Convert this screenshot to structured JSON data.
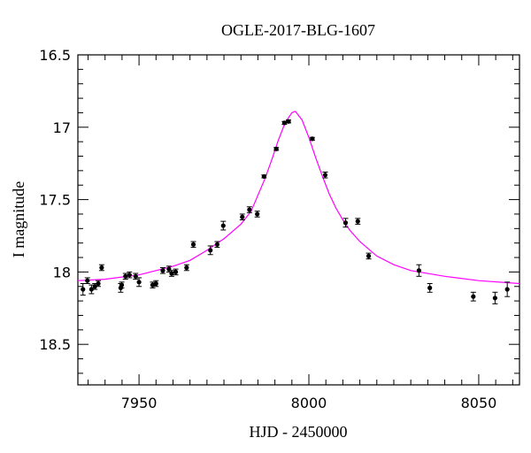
{
  "chart_data": {
    "type": "scatter",
    "title": "OGLE-2017-BLG-1607",
    "xlabel": "HJD - 2450000",
    "ylabel": "I magnitude",
    "xlim": [
      7932,
      8062
    ],
    "ylim": [
      18.78,
      16.5
    ],
    "y_inverted": true,
    "xticks": [
      7950,
      8000,
      8050
    ],
    "xtick_labels": [
      "7950",
      "8000",
      "8050"
    ],
    "yticks": [
      16.5,
      17,
      17.5,
      18,
      18.5
    ],
    "ytick_labels": [
      "16.5",
      "17",
      "17.5",
      "18",
      "18.5"
    ],
    "grid": false,
    "series": [
      {
        "kind": "points",
        "color": "#000000",
        "points": [
          {
            "x": 7933.5,
            "y": 18.12,
            "err": 0.04
          },
          {
            "x": 7934.8,
            "y": 18.06,
            "err": 0.02
          },
          {
            "x": 7936.0,
            "y": 18.12,
            "err": 0.03
          },
          {
            "x": 7937.0,
            "y": 18.1,
            "err": 0.02
          },
          {
            "x": 7938.0,
            "y": 18.08,
            "err": 0.02
          },
          {
            "x": 7939.0,
            "y": 17.97,
            "err": 0.02
          },
          {
            "x": 7944.6,
            "y": 18.11,
            "err": 0.03
          },
          {
            "x": 7944.9,
            "y": 18.09,
            "err": 0.02
          },
          {
            "x": 7946.0,
            "y": 18.03,
            "err": 0.02
          },
          {
            "x": 7947.2,
            "y": 18.02,
            "err": 0.02
          },
          {
            "x": 7949.0,
            "y": 18.03,
            "err": 0.02
          },
          {
            "x": 7950.0,
            "y": 18.07,
            "err": 0.03
          },
          {
            "x": 7954.0,
            "y": 18.09,
            "err": 0.02
          },
          {
            "x": 7955.0,
            "y": 18.08,
            "err": 0.02
          },
          {
            "x": 7957.0,
            "y": 17.99,
            "err": 0.02
          },
          {
            "x": 7958.8,
            "y": 17.98,
            "err": 0.02
          },
          {
            "x": 7959.6,
            "y": 18.01,
            "err": 0.02
          },
          {
            "x": 7960.8,
            "y": 18.0,
            "err": 0.02
          },
          {
            "x": 7964.0,
            "y": 17.97,
            "err": 0.02
          },
          {
            "x": 7966.0,
            "y": 17.81,
            "err": 0.02
          },
          {
            "x": 7971.0,
            "y": 17.85,
            "err": 0.03
          },
          {
            "x": 7973.0,
            "y": 17.81,
            "err": 0.02
          },
          {
            "x": 7974.8,
            "y": 17.68,
            "err": 0.03
          },
          {
            "x": 7980.4,
            "y": 17.62,
            "err": 0.02
          },
          {
            "x": 7982.5,
            "y": 17.57,
            "err": 0.02
          },
          {
            "x": 7984.8,
            "y": 17.6,
            "err": 0.02
          },
          {
            "x": 7986.8,
            "y": 17.34,
            "err": 0.01
          },
          {
            "x": 7990.4,
            "y": 17.15,
            "err": 0.01
          },
          {
            "x": 7992.8,
            "y": 16.97,
            "err": 0.01
          },
          {
            "x": 7994.0,
            "y": 16.96,
            "err": 0.01
          },
          {
            "x": 8001.0,
            "y": 17.08,
            "err": 0.01
          },
          {
            "x": 8004.8,
            "y": 17.33,
            "err": 0.02
          },
          {
            "x": 8010.8,
            "y": 17.66,
            "err": 0.03
          },
          {
            "x": 8014.4,
            "y": 17.65,
            "err": 0.02
          },
          {
            "x": 8017.6,
            "y": 17.89,
            "err": 0.02
          },
          {
            "x": 8032.4,
            "y": 17.99,
            "err": 0.04
          },
          {
            "x": 8035.6,
            "y": 18.11,
            "err": 0.03
          },
          {
            "x": 8048.4,
            "y": 18.17,
            "err": 0.03
          },
          {
            "x": 8054.8,
            "y": 18.18,
            "err": 0.04
          },
          {
            "x": 8058.4,
            "y": 18.12,
            "err": 0.05
          }
        ]
      },
      {
        "kind": "model-curve",
        "color": "#ff00ff",
        "x": [
          7932,
          7940,
          7950,
          7960,
          7965,
          7970,
          7975,
          7980,
          7983,
          7985,
          7987,
          7989,
          7991,
          7993,
          7995,
          7996,
          7998,
          8000,
          8002,
          8004,
          8006,
          8008,
          8010,
          8012,
          8015,
          8020,
          8025,
          8030,
          8040,
          8050,
          8062
        ],
        "y": [
          18.06,
          18.05,
          18.02,
          17.96,
          17.92,
          17.85,
          17.77,
          17.67,
          17.58,
          17.47,
          17.36,
          17.23,
          17.09,
          16.97,
          16.9,
          16.89,
          16.95,
          17.07,
          17.21,
          17.34,
          17.46,
          17.56,
          17.64,
          17.71,
          17.79,
          17.89,
          17.95,
          17.99,
          18.03,
          18.06,
          18.08
        ]
      }
    ]
  }
}
